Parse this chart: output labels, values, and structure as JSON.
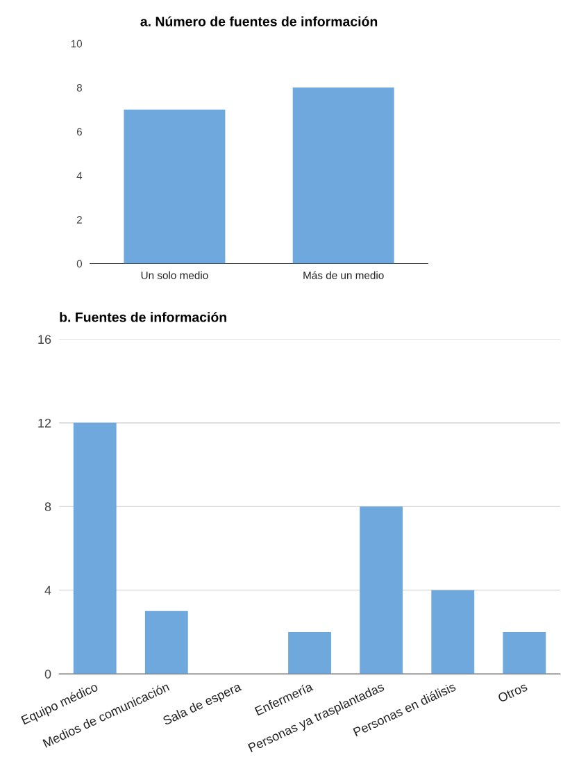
{
  "chart_data": [
    {
      "type": "bar",
      "title": "a. Número de fuentes de información",
      "categories": [
        "Un solo medio",
        "Más de un medio"
      ],
      "values": [
        7,
        8
      ],
      "color": "#6fa8dc",
      "ylim": [
        0,
        10
      ],
      "yticks": [
        0,
        2,
        4,
        6,
        8,
        10
      ],
      "grid": false
    },
    {
      "type": "bar",
      "title": "b. Fuentes de información",
      "categories": [
        "Equipo médico",
        "Medios de comunicación",
        "Sala de espera",
        "Enfermería",
        "Personas ya trasplantadas",
        "Personas en diálisis",
        "Otros"
      ],
      "values": [
        12,
        3,
        0,
        2,
        8,
        4,
        2
      ],
      "color": "#6fa8dc",
      "ylim": [
        0,
        16
      ],
      "yticks": [
        0,
        4,
        8,
        12,
        16
      ],
      "grid": "y"
    }
  ]
}
